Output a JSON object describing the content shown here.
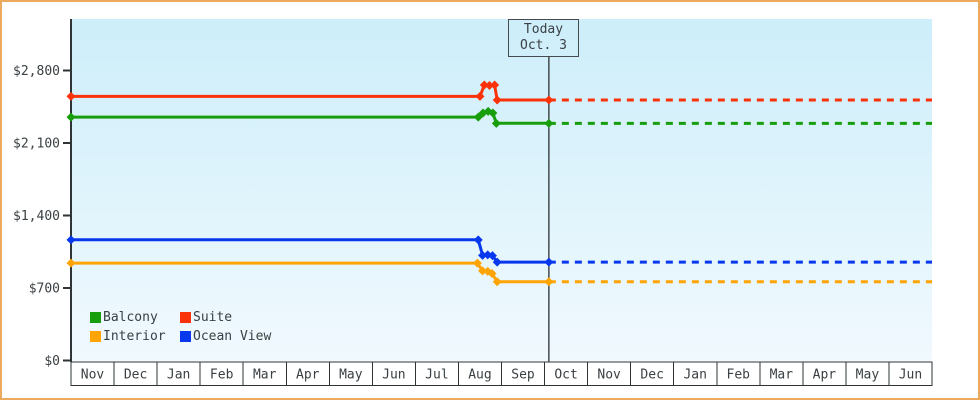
{
  "window": {
    "border_color": "#ecaa5f",
    "background": "#ffffff"
  },
  "today_box": {
    "line1": "Today",
    "line2": "Oct. 3"
  },
  "legend": {
    "items": [
      {
        "label": "Balcony",
        "color": "#189d0d"
      },
      {
        "label": "Suite",
        "color": "#fa320a"
      },
      {
        "label": "Interior",
        "color": "#ffa405"
      },
      {
        "label": "Ocean View",
        "color": "#0838ee"
      }
    ]
  },
  "chart_data": {
    "type": "line",
    "title": "",
    "xlabel": "",
    "ylabel": "",
    "x_categories": [
      "Nov",
      "Dec",
      "Jan",
      "Feb",
      "Mar",
      "Apr",
      "May",
      "Jun",
      "Jul",
      "Aug",
      "Sep",
      "Oct",
      "Nov",
      "Dec",
      "Jan",
      "Feb",
      "Mar",
      "Apr",
      "May",
      "Jun"
    ],
    "y_ticks": [
      {
        "value": 0,
        "label": "$0"
      },
      {
        "value": 700,
        "label": "$700"
      },
      {
        "value": 1400,
        "label": "$1,400"
      },
      {
        "value": 2100,
        "label": "$2,100"
      },
      {
        "value": 2800,
        "label": "$2,800"
      }
    ],
    "ylim": [
      0,
      3290
    ],
    "grid": false,
    "legend_position": "bottom-left-inside",
    "today": {
      "t": 11.1,
      "label": "Today",
      "date": "Oct. 3"
    },
    "series": [
      {
        "name": "Interior",
        "color": "#ffa405",
        "points": [
          [
            0,
            940
          ],
          [
            9.44,
            940
          ],
          [
            9.56,
            865
          ],
          [
            9.68,
            860
          ],
          [
            9.78,
            840
          ],
          [
            9.9,
            760
          ],
          [
            11.1,
            760
          ]
        ],
        "future_value": 760
      },
      {
        "name": "Ocean View",
        "color": "#0838ee",
        "points": [
          [
            0,
            1165
          ],
          [
            9.46,
            1165
          ],
          [
            9.56,
            1015
          ],
          [
            9.68,
            1020
          ],
          [
            9.79,
            1012
          ],
          [
            9.9,
            950
          ],
          [
            11.1,
            950
          ]
        ],
        "future_value": 950
      },
      {
        "name": "Balcony",
        "color": "#189d0d",
        "points": [
          [
            0,
            2350
          ],
          [
            9.46,
            2350
          ],
          [
            9.57,
            2390
          ],
          [
            9.69,
            2405
          ],
          [
            9.8,
            2390
          ],
          [
            9.88,
            2290
          ],
          [
            11.1,
            2290
          ]
        ],
        "future_value": 2290
      },
      {
        "name": "Suite",
        "color": "#fa320a",
        "points": [
          [
            0,
            2550
          ],
          [
            9.5,
            2550
          ],
          [
            9.6,
            2660
          ],
          [
            9.72,
            2655
          ],
          [
            9.84,
            2660
          ],
          [
            9.9,
            2515
          ],
          [
            11.1,
            2515
          ]
        ],
        "future_value": 2515
      }
    ],
    "plot": {
      "bg_top": "#cdeefa",
      "bg_bottom": "#f1f9fe",
      "axis_color": "#2f3436",
      "text_color": "#3a4043",
      "month_cell_bg": "#ffffff",
      "today_line_color": "#434b4e"
    }
  }
}
